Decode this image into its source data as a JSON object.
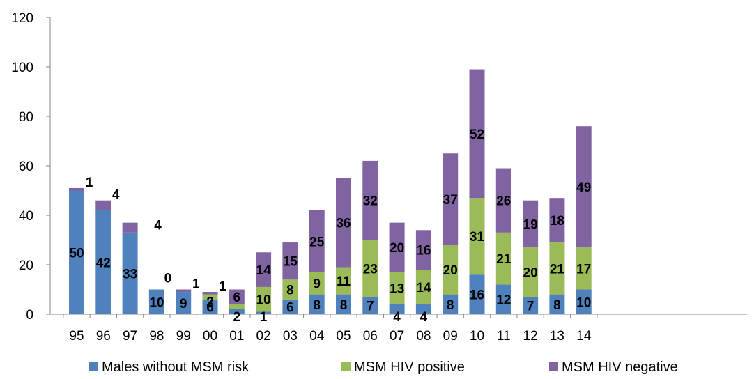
{
  "chart_data": {
    "type": "bar",
    "stacked": true,
    "categories": [
      "95",
      "96",
      "97",
      "98",
      "99",
      "00",
      "01",
      "02",
      "03",
      "04",
      "05",
      "06",
      "07",
      "08",
      "09",
      "10",
      "11",
      "12",
      "13",
      "14"
    ],
    "series": [
      {
        "name": "Males without MSM risk",
        "color": "#4F81BD",
        "values": [
          50,
          42,
          33,
          10,
          9,
          6,
          2,
          1,
          6,
          8,
          8,
          7,
          4,
          4,
          8,
          16,
          12,
          7,
          8,
          10
        ]
      },
      {
        "name": "MSM HIV positive",
        "color": "#9BBB59",
        "values": [
          0,
          0,
          0,
          0,
          0,
          2,
          2,
          10,
          8,
          9,
          11,
          23,
          13,
          14,
          20,
          31,
          21,
          20,
          21,
          17
        ]
      },
      {
        "name": "MSM HIV negative",
        "color": "#8064A2",
        "values": [
          1,
          4,
          4,
          0,
          1,
          1,
          6,
          14,
          15,
          25,
          36,
          32,
          20,
          16,
          37,
          52,
          26,
          19,
          18,
          49
        ]
      }
    ],
    "data_labels": {
      "Males without MSM risk": [
        "50",
        "42",
        "33",
        "10",
        "9",
        "6",
        "2",
        "1",
        "6",
        "8",
        "8",
        "7",
        "4",
        "4",
        "8",
        "16",
        "12",
        "7",
        "8",
        "10"
      ],
      "MSM HIV positive": [
        "",
        "",
        "",
        "",
        "",
        "2",
        "",
        "10",
        "8",
        "9",
        "11",
        "23",
        "13",
        "14",
        "20",
        "31",
        "21",
        "20",
        "21",
        "17"
      ],
      "MSM HIV negative": [
        "1",
        "4",
        "4",
        "0",
        "1",
        "1",
        "6",
        "14",
        "15",
        "25",
        "36",
        "32",
        "20",
        "16",
        "37",
        "52",
        "26",
        "19",
        "18",
        "49"
      ]
    },
    "ylim": [
      0,
      120
    ],
    "yticks": [
      "0",
      "20",
      "40",
      "60",
      "80",
      "100",
      "120"
    ],
    "grid": false,
    "legend": "bottom"
  }
}
